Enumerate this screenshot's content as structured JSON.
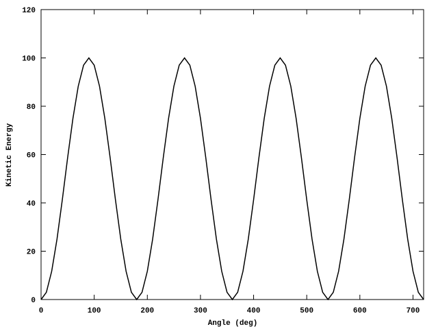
{
  "chart_data": {
    "type": "line",
    "xlabel": "Angle (deg)",
    "ylabel": "Kinetic Energy",
    "x": [
      0,
      10,
      20,
      30,
      40,
      50,
      60,
      70,
      80,
      90,
      100,
      110,
      120,
      130,
      140,
      150,
      160,
      170,
      180,
      190,
      200,
      210,
      220,
      230,
      240,
      250,
      260,
      270,
      280,
      290,
      300,
      310,
      320,
      330,
      340,
      350,
      360,
      370,
      380,
      390,
      400,
      410,
      420,
      430,
      440,
      450,
      460,
      470,
      480,
      490,
      500,
      510,
      520,
      530,
      540,
      550,
      560,
      570,
      580,
      590,
      600,
      610,
      620,
      630,
      640,
      650,
      660,
      670,
      680,
      690,
      700,
      710,
      720
    ],
    "series": [
      {
        "color": "#000000",
        "values": [
          0,
          3,
          11.7,
          25,
          41.3,
          58.7,
          75,
          88.3,
          97,
          100,
          97,
          88.3,
          75,
          58.7,
          41.3,
          25,
          11.7,
          3,
          0,
          3,
          11.7,
          25,
          41.3,
          58.7,
          75,
          88.3,
          97,
          100,
          97,
          88.3,
          75,
          58.7,
          41.3,
          25,
          11.7,
          3,
          0,
          3,
          11.7,
          25,
          41.3,
          58.7,
          75,
          88.3,
          97,
          100,
          97,
          88.3,
          75,
          58.7,
          41.3,
          25,
          11.7,
          3,
          0,
          3,
          11.7,
          25,
          41.3,
          58.7,
          75,
          88.3,
          97,
          100,
          97,
          88.3,
          75,
          58.7,
          41.3,
          25,
          11.7,
          3,
          0
        ]
      }
    ],
    "xlim": [
      0,
      720
    ],
    "xticks": [
      0,
      100,
      200,
      300,
      400,
      500,
      600,
      700
    ],
    "ylim": [
      0,
      120
    ],
    "yticks": [
      0,
      20,
      40,
      60,
      80,
      100,
      120
    ]
  }
}
